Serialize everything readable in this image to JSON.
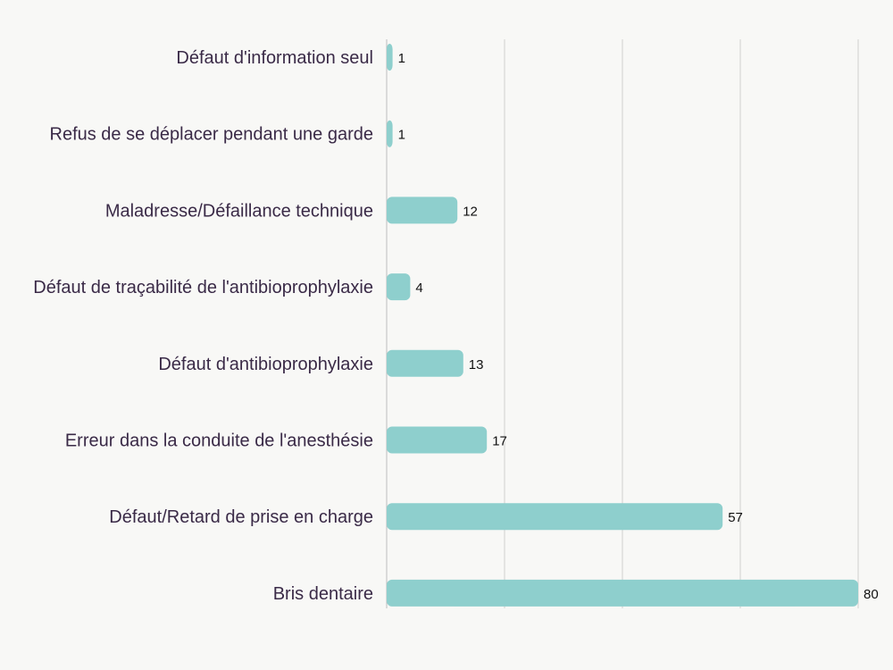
{
  "chart_data": {
    "type": "bar",
    "orientation": "horizontal",
    "categories": [
      "Défaut d'information seul",
      "Refus de se déplacer pendant une garde",
      "Maladresse/Défaillance technique",
      "Défaut de traçabilité de l'antibioprophylaxie",
      "Défaut d'antibioprophylaxie",
      "Erreur dans la conduite de l'anesthésie",
      "Défaut/Retard de prise en charge",
      "Bris dentaire"
    ],
    "values": [
      1,
      1,
      12,
      4,
      13,
      17,
      57,
      80
    ],
    "xlim": [
      0,
      80
    ],
    "xticks": [
      0,
      20,
      40,
      60,
      80
    ],
    "grid": true,
    "show_tick_labels": false,
    "data_labels": true,
    "title": "",
    "xlabel": "",
    "ylabel": "",
    "colors": {
      "bar": "#8ecfcd",
      "grid": "#cfcfcf",
      "axis": "#bdbdbd",
      "category_text": "#3a2a47",
      "value_text": "#111111",
      "background": "#f8f8f6"
    }
  }
}
